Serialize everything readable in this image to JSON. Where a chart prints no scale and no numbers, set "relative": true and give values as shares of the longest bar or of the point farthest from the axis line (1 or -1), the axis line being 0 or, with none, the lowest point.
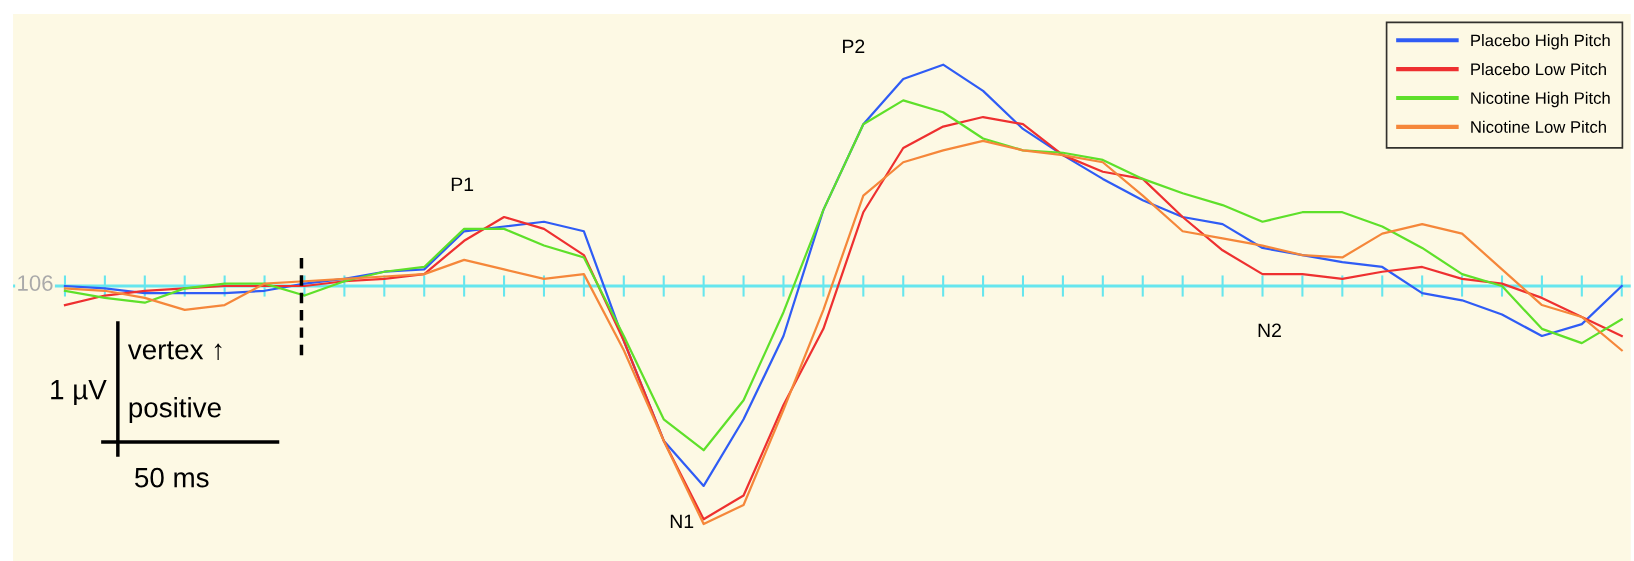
{
  "chart_data": {
    "type": "line",
    "relative": true,
    "grid": false,
    "ref_lines": [
      {
        "axis": "y",
        "value": 0,
        "color": "#66e6ee"
      }
    ],
    "legend": "top right",
    "marker": "none",
    "line_style": "solid",
    "categories": [
      null,
      null,
      null,
      null,
      null,
      null,
      null,
      null,
      null,
      null,
      null,
      null,
      null,
      null,
      null,
      null,
      null,
      null,
      null,
      null,
      null,
      null,
      null,
      null,
      null,
      null,
      null,
      null,
      null,
      null,
      null,
      null,
      null,
      null,
      null,
      null,
      null,
      null,
      null,
      null
    ],
    "series": [
      {
        "name": "Placebo High Pitch",
        "color": "#2f5cf5",
        "values": [
          0.0,
          -0.01,
          -0.03,
          -0.03,
          -0.03,
          -0.02,
          0.01,
          0.03,
          0.06,
          0.07,
          0.23,
          0.25,
          0.27,
          0.23,
          -0.23,
          -0.65,
          -0.84,
          -0.56,
          -0.21,
          0.32,
          0.68,
          0.87,
          0.93,
          0.82,
          0.66,
          0.55,
          0.45,
          0.36,
          0.29,
          0.26,
          0.16,
          0.13,
          0.1,
          0.08,
          -0.03,
          -0.06,
          -0.12,
          -0.21,
          -0.16,
          0.0
        ]
      },
      {
        "name": "Placebo Low Pitch",
        "color": "#ee3030",
        "values": [
          -0.08,
          -0.04,
          -0.02,
          -0.01,
          0.0,
          0.0,
          0.0,
          0.02,
          0.03,
          0.05,
          0.19,
          0.29,
          0.24,
          0.13,
          -0.23,
          -0.65,
          -0.98,
          -0.88,
          -0.5,
          -0.18,
          0.31,
          0.58,
          0.67,
          0.71,
          0.68,
          0.55,
          0.48,
          0.45,
          0.29,
          0.15,
          0.05,
          0.05,
          0.03,
          0.06,
          0.08,
          0.03,
          0.01,
          -0.05,
          -0.13,
          -0.21
        ]
      },
      {
        "name": "Nicotine High Pitch",
        "color": "#5ee02a",
        "values": [
          -0.02,
          -0.05,
          -0.07,
          -0.01,
          0.01,
          0.01,
          -0.04,
          0.02,
          0.06,
          0.08,
          0.24,
          0.24,
          0.17,
          0.12,
          -0.21,
          -0.56,
          -0.69,
          -0.48,
          -0.11,
          0.32,
          0.68,
          0.78,
          0.73,
          0.62,
          0.57,
          0.56,
          0.53,
          0.45,
          0.39,
          0.34,
          0.27,
          0.31,
          0.31,
          0.25,
          0.16,
          0.05,
          0.0,
          -0.18,
          -0.24,
          -0.14
        ]
      },
      {
        "name": "Nicotine Low Pitch",
        "color": "#f5873a",
        "values": [
          -0.01,
          -0.02,
          -0.05,
          -0.1,
          -0.08,
          0.01,
          0.02,
          0.03,
          0.04,
          0.05,
          0.11,
          0.07,
          0.03,
          0.05,
          -0.27,
          -0.65,
          -1.0,
          -0.92,
          -0.52,
          -0.1,
          0.38,
          0.52,
          0.57,
          0.61,
          0.57,
          0.55,
          0.52,
          0.38,
          0.23,
          0.2,
          0.17,
          0.13,
          0.12,
          0.22,
          0.26,
          0.22,
          0.07,
          -0.08,
          -0.13,
          -0.27
        ]
      }
    ],
    "annotations": [
      "P1",
      "N1",
      "P2",
      "N2",
      "106",
      "1 µV",
      "vertex ↑",
      "positive",
      "50 ms"
    ]
  }
}
